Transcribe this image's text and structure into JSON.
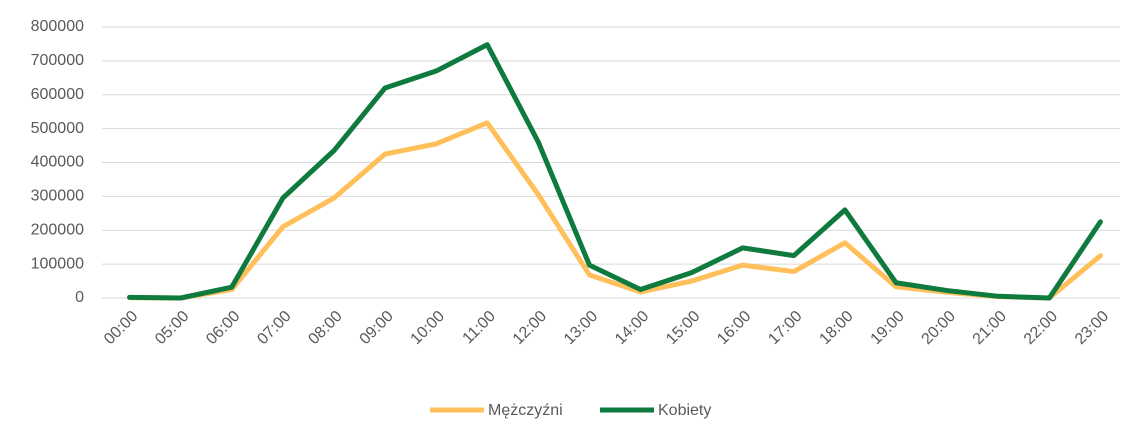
{
  "chart_data": {
    "type": "line",
    "categories": [
      "00:00",
      "05:00",
      "06:00",
      "07:00",
      "08:00",
      "09:00",
      "10:00",
      "11:00",
      "12:00",
      "13:00",
      "14:00",
      "15:00",
      "16:00",
      "17:00",
      "18:00",
      "19:00",
      "20:00",
      "21:00",
      "22:00",
      "23:00"
    ],
    "series": [
      {
        "name": "Mężczyźni",
        "color": "#ffc05c",
        "values": [
          1000,
          0,
          25000,
          210000,
          295000,
          425000,
          455000,
          517000,
          305000,
          68000,
          18000,
          50000,
          97000,
          78000,
          163000,
          33000,
          17000,
          4000,
          0,
          125000
        ]
      },
      {
        "name": "Kobiety",
        "color": "#0e7a3e",
        "values": [
          2000,
          0,
          32000,
          295000,
          435000,
          620000,
          670000,
          748000,
          460000,
          97000,
          25000,
          75000,
          148000,
          125000,
          260000,
          45000,
          22000,
          5000,
          0,
          225000
        ]
      }
    ],
    "ylim": [
      0,
      800000
    ],
    "yticks": [
      0,
      100000,
      200000,
      300000,
      400000,
      500000,
      600000,
      700000,
      800000
    ],
    "grid": true,
    "legend": "bottom"
  }
}
